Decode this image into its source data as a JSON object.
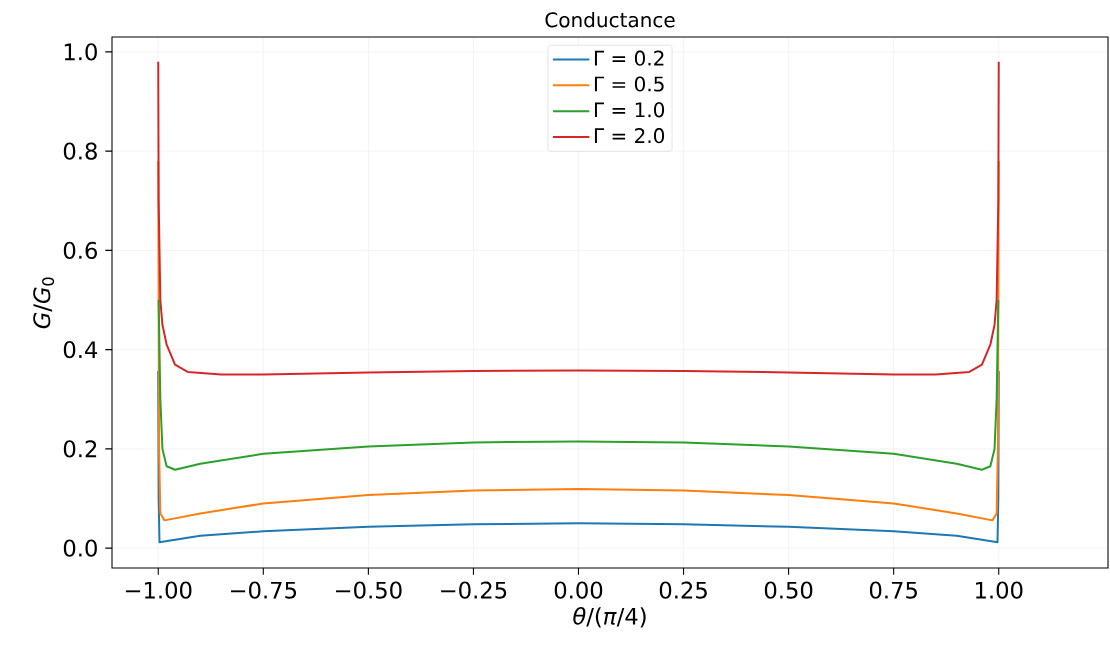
{
  "chart_data": {
    "type": "line",
    "title": "Conductance",
    "xlabel": "*θ*/(*π*/4)",
    "ylabel": "*G*/*G*$_{0}$",
    "xlim": [
      -1.11,
      1.26
    ],
    "ylim": [
      -0.04,
      1.03
    ],
    "xticks": [
      {
        "value": -1,
        "label": "−1.00"
      },
      {
        "value": -0.75,
        "label": "−0.75"
      },
      {
        "value": -0.5,
        "label": "−0.50"
      },
      {
        "value": -0.25,
        "label": "−0.25"
      },
      {
        "value": 0,
        "label": "0.00"
      },
      {
        "value": 0.25,
        "label": "0.25"
      },
      {
        "value": 0.5,
        "label": "0.50"
      },
      {
        "value": 0.75,
        "label": "0.75"
      },
      {
        "value": 1,
        "label": "1.00"
      }
    ],
    "yticks": [
      {
        "value": 0,
        "label": "0.0"
      },
      {
        "value": 0.2,
        "label": "0.2"
      },
      {
        "value": 0.4,
        "label": "0.4"
      },
      {
        "value": 0.6,
        "label": "0.6"
      },
      {
        "value": 0.8,
        "label": "0.8"
      },
      {
        "value": 1,
        "label": "1.0"
      }
    ],
    "grid": true,
    "legend": "top",
    "marker": "none",
    "line_style": "solid",
    "series": [
      {
        "name": "Γ = 0.2",
        "color": "#1f77b4",
        "x": [
          -1,
          -0.999,
          -0.997,
          -0.99,
          -0.9,
          -0.75,
          -0.5,
          -0.25,
          0,
          0.25,
          0.5,
          0.75,
          0.9,
          0.99,
          0.997,
          0.999,
          1
        ],
        "values": [
          0.357,
          0.1,
          0.012,
          0.013,
          0.025,
          0.034,
          0.043,
          0.048,
          0.05,
          0.048,
          0.043,
          0.034,
          0.025,
          0.013,
          0.012,
          0.1,
          0.357
        ]
      },
      {
        "name": "Γ = 0.5",
        "color": "#ff7f0e",
        "x": [
          -1,
          -0.998,
          -0.995,
          -0.985,
          -0.9,
          -0.75,
          -0.5,
          -0.25,
          0,
          0.25,
          0.5,
          0.75,
          0.9,
          0.985,
          0.995,
          0.998,
          1
        ],
        "values": [
          0.78,
          0.2,
          0.07,
          0.056,
          0.07,
          0.09,
          0.107,
          0.116,
          0.119,
          0.116,
          0.107,
          0.09,
          0.07,
          0.056,
          0.07,
          0.2,
          0.78
        ]
      },
      {
        "name": "Γ = 1.0",
        "color": "#2ca02c",
        "x": [
          -0.999,
          -0.995,
          -0.99,
          -0.98,
          -0.96,
          -0.9,
          -0.75,
          -0.5,
          -0.25,
          0,
          0.25,
          0.5,
          0.75,
          0.9,
          0.96,
          0.98,
          0.99,
          0.995,
          0.999
        ],
        "values": [
          0.5,
          0.3,
          0.2,
          0.165,
          0.158,
          0.17,
          0.19,
          0.205,
          0.213,
          0.215,
          0.213,
          0.205,
          0.19,
          0.17,
          0.158,
          0.165,
          0.2,
          0.3,
          0.5
        ]
      },
      {
        "name": "Γ = 2.0",
        "color": "#d62728",
        "x": [
          -1,
          -0.999,
          -0.995,
          -0.99,
          -0.98,
          -0.96,
          -0.93,
          -0.85,
          -0.75,
          -0.5,
          -0.25,
          0,
          0.25,
          0.5,
          0.75,
          0.85,
          0.93,
          0.96,
          0.98,
          0.99,
          0.995,
          0.999,
          1
        ],
        "values": [
          0.98,
          0.7,
          0.5,
          0.45,
          0.41,
          0.37,
          0.355,
          0.35,
          0.35,
          0.354,
          0.357,
          0.358,
          0.357,
          0.354,
          0.35,
          0.35,
          0.355,
          0.37,
          0.41,
          0.45,
          0.5,
          0.7,
          0.98
        ]
      }
    ]
  }
}
